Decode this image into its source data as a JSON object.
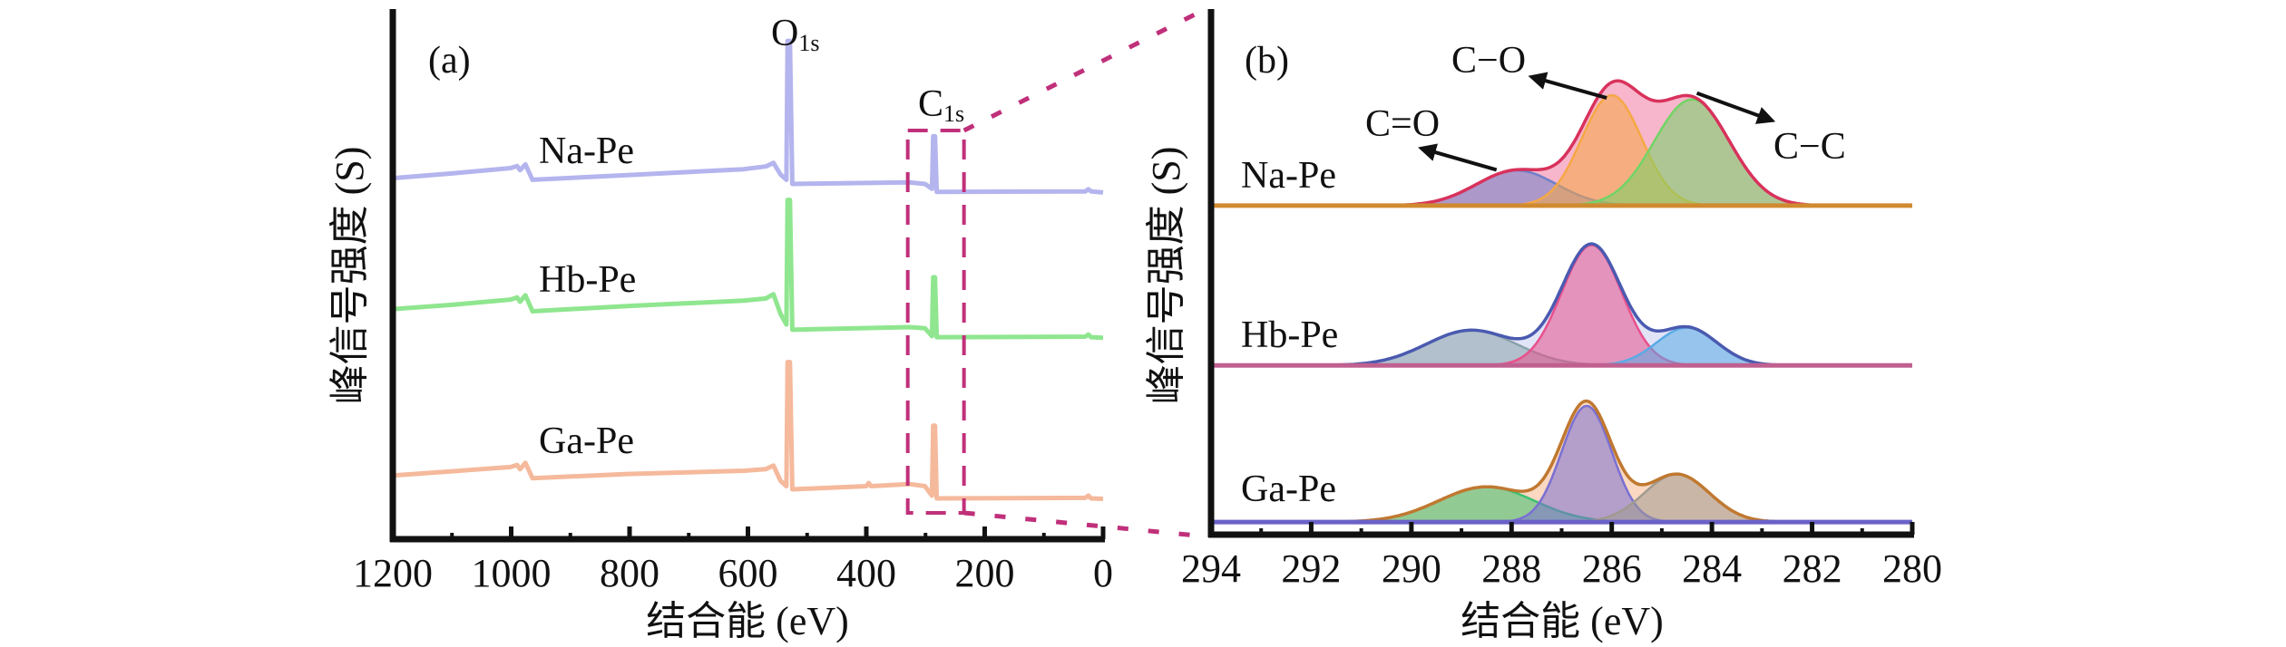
{
  "chart_data": [
    {
      "type": "line",
      "panel_label": "(a)",
      "xlabel": "结合能 (eV)",
      "ylabel": "峰信号强度 (S)",
      "xlim": [
        1200,
        0
      ],
      "x_reversed": true,
      "ylim": [
        0,
        100
      ],
      "y_units": "a.u.",
      "xticks": [
        1200,
        1000,
        800,
        600,
        400,
        200,
        0
      ],
      "grid": false,
      "peak_labels": [
        {
          "main": "O",
          "sub": "1s",
          "x": 531
        },
        {
          "main": "C",
          "sub": "1s",
          "x": 285
        }
      ],
      "zoom_box_x": [
        330,
        235
      ],
      "series": [
        {
          "name": "Na-Pe",
          "color": "#b4b4ee",
          "points": [
            [
              1200,
              68.1
            ],
            [
              1100,
              69.0
            ],
            [
              1001,
              70.0
            ],
            [
              990,
              70.4
            ],
            [
              985,
              69.6
            ],
            [
              976,
              70.7
            ],
            [
              964,
              67.8
            ],
            [
              800,
              68.7
            ],
            [
              607,
              69.8
            ],
            [
              570,
              70.3
            ],
            [
              557,
              71.0
            ],
            [
              545,
              68.8
            ],
            [
              535,
              67.8
            ],
            [
              533,
              94.0
            ],
            [
              529,
              94.0
            ],
            [
              525,
              67.0
            ],
            [
              327,
              67.3
            ],
            [
              301,
              67.0
            ],
            [
              289,
              66.1
            ],
            [
              287,
              76.0
            ],
            [
              284,
              76.0
            ],
            [
              281,
              65.5
            ],
            [
              30,
              65.6
            ],
            [
              25,
              66.0
            ],
            [
              20,
              65.6
            ],
            [
              0,
              65.4
            ]
          ]
        },
        {
          "name": "Hb-Pe",
          "color": "#8fe68f",
          "points": [
            [
              1200,
              43.4
            ],
            [
              1100,
              44.2
            ],
            [
              1001,
              45.2
            ],
            [
              990,
              45.6
            ],
            [
              985,
              44.8
            ],
            [
              976,
              46.0
            ],
            [
              964,
              43.0
            ],
            [
              800,
              44.0
            ],
            [
              607,
              45.0
            ],
            [
              570,
              45.4
            ],
            [
              557,
              46.2
            ],
            [
              545,
              42.5
            ],
            [
              535,
              40.5
            ],
            [
              533,
              64.0
            ],
            [
              529,
              64.0
            ],
            [
              525,
              39.5
            ],
            [
              327,
              40.0
            ],
            [
              301,
              39.8
            ],
            [
              289,
              38.3
            ],
            [
              287,
              49.4
            ],
            [
              284,
              49.4
            ],
            [
              281,
              38.1
            ],
            [
              30,
              38.2
            ],
            [
              25,
              38.6
            ],
            [
              20,
              38.1
            ],
            [
              0,
              38.0
            ]
          ]
        },
        {
          "name": "Ga-Pe",
          "color": "#f5b99c",
          "points": [
            [
              1200,
              12.0
            ],
            [
              1100,
              12.8
            ],
            [
              1001,
              13.6
            ],
            [
              990,
              14.0
            ],
            [
              985,
              13.2
            ],
            [
              976,
              14.4
            ],
            [
              964,
              11.5
            ],
            [
              800,
              12.3
            ],
            [
              607,
              12.9
            ],
            [
              570,
              13.2
            ],
            [
              557,
              13.9
            ],
            [
              545,
              11.0
            ],
            [
              535,
              10.0
            ],
            [
              533,
              33.4
            ],
            [
              529,
              33.4
            ],
            [
              525,
              9.4
            ],
            [
              400,
              10.0
            ],
            [
              396,
              10.6
            ],
            [
              392,
              10.0
            ],
            [
              327,
              10.4
            ],
            [
              301,
              10.0
            ],
            [
              289,
              8.2
            ],
            [
              287,
              21.4
            ],
            [
              284,
              21.4
            ],
            [
              281,
              7.7
            ],
            [
              30,
              7.8
            ],
            [
              25,
              8.2
            ],
            [
              20,
              7.7
            ],
            [
              0,
              7.6
            ]
          ]
        }
      ]
    },
    {
      "type": "area",
      "panel_label": "(b)",
      "xlabel": "结合能 (eV)",
      "ylabel": "峰信号强度 (S)",
      "xlim": [
        294,
        280
      ],
      "x_reversed": true,
      "ylim": [
        0,
        100
      ],
      "y_units": "a.u.",
      "xticks": [
        294,
        292,
        290,
        288,
        286,
        284,
        282,
        280
      ],
      "grid": false,
      "annotations": [
        {
          "text": "C=O",
          "arrow_from": [
            288.3,
            69.4
          ],
          "arrow_to": [
            289.8,
            73.5
          ]
        },
        {
          "text": "C−O",
          "arrow_from": [
            286.1,
            83.1
          ],
          "arrow_to": [
            287.6,
            87.1
          ]
        },
        {
          "text": "C−C",
          "arrow_from": [
            284.3,
            84.0
          ],
          "arrow_to": [
            282.8,
            78.8
          ]
        }
      ],
      "series": [
        {
          "name": "Na-Pe",
          "baseline": 62.6,
          "envelope_color": "#d8325c",
          "envelope_fill": "#f07aa0",
          "baseline_color": "#d08a30",
          "components": [
            {
              "center": 287.9,
              "height": 6.7,
              "sigma": 0.8,
              "color": "#6f7fc8"
            },
            {
              "center": 286.0,
              "height": 21.0,
              "sigma": 0.6,
              "color": "#f5a844"
            },
            {
              "center": 284.4,
              "height": 20.2,
              "sigma": 0.75,
              "color": "#72d466"
            }
          ]
        },
        {
          "name": "Hb-Pe",
          "baseline": 32.2,
          "envelope_color": "#4a5ab0",
          "envelope_fill": "#c8cdf0",
          "baseline_color": "#c06090",
          "components": [
            {
              "center": 288.8,
              "height": 6.7,
              "sigma": 0.9,
              "color": "#8aa2aa"
            },
            {
              "center": 286.4,
              "height": 22.9,
              "sigma": 0.6,
              "color": "#e8508c"
            },
            {
              "center": 284.5,
              "height": 7.2,
              "sigma": 0.6,
              "color": "#5aaae6"
            }
          ]
        },
        {
          "name": "Ga-Pe",
          "baseline": 2.4,
          "envelope_color": "#c07830",
          "envelope_fill": "#f5b890",
          "baseline_color": "#6a62c8",
          "components": [
            {
              "center": 288.5,
              "height": 6.7,
              "sigma": 0.95,
              "color": "#3cc070"
            },
            {
              "center": 286.5,
              "height": 22.1,
              "sigma": 0.5,
              "color": "#7a70d2"
            },
            {
              "center": 284.7,
              "height": 9.1,
              "sigma": 0.65,
              "color": "#a09a90"
            }
          ]
        }
      ]
    }
  ],
  "zoom_connector_color": "#c0307a"
}
